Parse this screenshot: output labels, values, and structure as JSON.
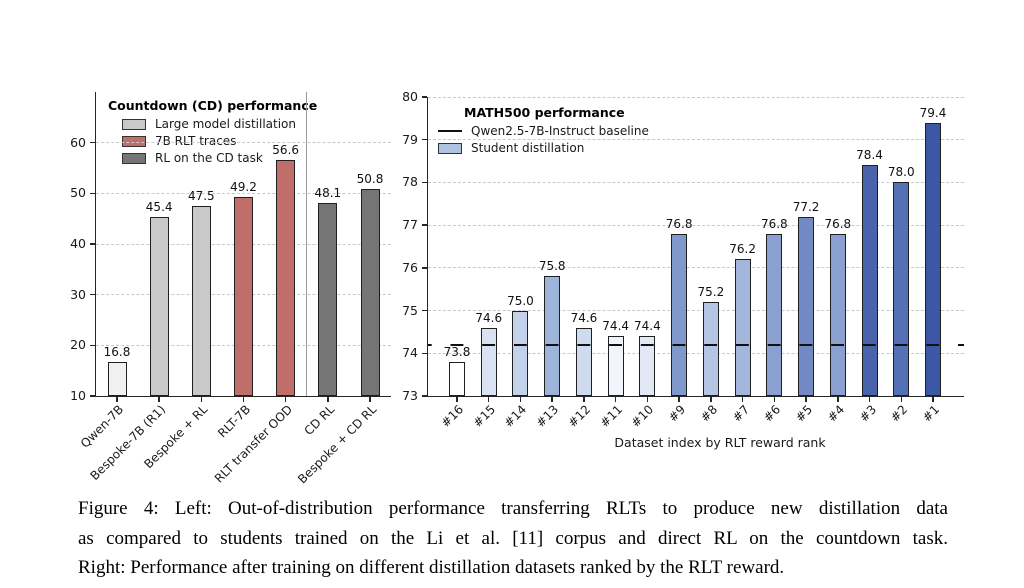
{
  "caption": {
    "lines": [
      "Figure 4:  Left: Out-of-distribution performance transferring RLTs to produce new distillation data",
      "as compared to students trained on the Li et al. [11] corpus and direct RL on the countdown task.",
      "Right: Performance after training on different distillation datasets ranked by the RLT reward."
    ]
  },
  "chart_data": [
    {
      "type": "bar",
      "title": "Countdown (CD) performance",
      "categories": [
        "Qwen-7B",
        "Bespoke-7B (R1)",
        "Bespoke + RL",
        "RLT-7B",
        "RLT transfer OOD",
        "CD RL",
        "Bespoke + CD RL"
      ],
      "values": [
        16.8,
        45.4,
        47.5,
        49.2,
        56.6,
        48.1,
        50.8
      ],
      "bar_colors": [
        "#f1f1f1",
        "#c9c9c9",
        "#c9c9c9",
        "#bf6e69",
        "#bf6e69",
        "#757575",
        "#757575"
      ],
      "ylim": [
        10,
        70
      ],
      "yticks": [
        10,
        20,
        30,
        40,
        50,
        60
      ],
      "grid": true,
      "legend_position": "upper-left-inside",
      "legend": [
        {
          "label": "Large model distillation",
          "swatch": "patch",
          "color": "#c9c9c9"
        },
        {
          "label": "7B RLT traces",
          "swatch": "patch",
          "color": "#bf6e69"
        },
        {
          "label": "RL on the CD task",
          "swatch": "patch",
          "color": "#757575"
        }
      ],
      "divider_after_category": "RLT transfer OOD"
    },
    {
      "type": "bar",
      "title": "MATH500 performance",
      "xlabel": "Dataset index by RLT reward rank",
      "categories": [
        "#16",
        "#15",
        "#14",
        "#13",
        "#12",
        "#11",
        "#10",
        "#9",
        "#8",
        "#7",
        "#6",
        "#5",
        "#4",
        "#3",
        "#2",
        "#1"
      ],
      "values": [
        73.8,
        74.6,
        75.0,
        75.8,
        74.6,
        74.4,
        74.4,
        76.8,
        75.2,
        76.2,
        76.8,
        77.2,
        76.8,
        78.4,
        78.0,
        79.4
      ],
      "bar_colors": [
        "#ffffff",
        "#d9e2f1",
        "#c4d2e9",
        "#9fb4db",
        "#cfdbee",
        "#f1f4fa",
        "#e2e9f4",
        "#8099cc",
        "#b5c6e4",
        "#a3b7dc",
        "#8ba0d1",
        "#7289c3",
        "#8ba0d1",
        "#4a64ac",
        "#5571b6",
        "#3c57a6"
      ],
      "ylim": [
        73,
        80
      ],
      "yticks": [
        73,
        74,
        75,
        76,
        77,
        78,
        79,
        80
      ],
      "grid": true,
      "baseline": {
        "value": 74.2,
        "color": "#111111",
        "label": "Qwen2.5-7B-Instruct baseline"
      },
      "legend_position": "upper-left-inside",
      "legend": [
        {
          "label": "Qwen2.5-7B-Instruct baseline",
          "swatch": "line",
          "color": "#111111"
        },
        {
          "label": "Student distillation",
          "swatch": "patch",
          "color": "#aec3e2"
        }
      ]
    }
  ]
}
